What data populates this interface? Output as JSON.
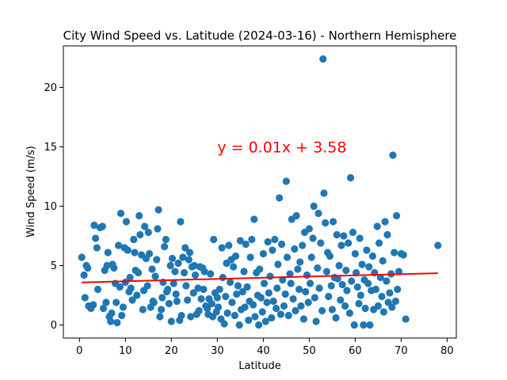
{
  "chart_data": {
    "type": "scatter",
    "title": "City Wind Speed vs. Latitude (2024-03-16) - Northern Hemisphere",
    "xlabel": "Latitude",
    "ylabel": "Wind Speed (m/s)",
    "xlim": [
      -3.5,
      82
    ],
    "ylim": [
      -1.1,
      23.5
    ],
    "xticks": [
      0,
      10,
      20,
      30,
      40,
      50,
      60,
      70,
      80
    ],
    "yticks": [
      0,
      5,
      10,
      15,
      20
    ],
    "grid": false,
    "marker_color": "#1f77b4",
    "regression": {
      "equation": "y = 0.01x + 3.58",
      "slope": 0.01,
      "intercept": 3.58,
      "x_range": [
        0.5,
        78
      ],
      "color": "#ff0000",
      "label_x": 30,
      "label_y": 15
    },
    "points": [
      [
        0.5,
        5.7
      ],
      [
        1,
        4.2
      ],
      [
        1.2,
        2.3
      ],
      [
        1.5,
        5.0
      ],
      [
        1.8,
        4.8
      ],
      [
        2,
        1.6
      ],
      [
        2.5,
        1.4
      ],
      [
        3,
        1.7
      ],
      [
        3.2,
        8.4
      ],
      [
        3.5,
        7.3
      ],
      [
        3.8,
        6.5
      ],
      [
        4,
        3.0
      ],
      [
        4.5,
        8.2
      ],
      [
        5,
        8.3
      ],
      [
        5.2,
        1.4
      ],
      [
        5.5,
        4.6
      ],
      [
        5.8,
        1.9
      ],
      [
        6,
        5.0
      ],
      [
        6.2,
        6.1
      ],
      [
        6.5,
        0.7
      ],
      [
        6.8,
        0.3
      ],
      [
        7,
        1.0
      ],
      [
        7.2,
        5.1
      ],
      [
        7.5,
        4.8
      ],
      [
        7.8,
        3.5
      ],
      [
        8,
        1.9
      ],
      [
        8.2,
        0.2
      ],
      [
        8.5,
        6.7
      ],
      [
        8.8,
        3.2
      ],
      [
        9,
        9.4
      ],
      [
        9.2,
        0.8
      ],
      [
        9.5,
        1.5
      ],
      [
        9.8,
        6.5
      ],
      [
        10,
        3.6
      ],
      [
        10.2,
        8.7
      ],
      [
        10.5,
        6.3
      ],
      [
        10.8,
        2.8
      ],
      [
        11,
        4.0
      ],
      [
        11.2,
        3.1
      ],
      [
        11.5,
        2.1
      ],
      [
        11.8,
        7.2
      ],
      [
        12,
        6.1
      ],
      [
        12.2,
        4.6
      ],
      [
        12.5,
        2.5
      ],
      [
        12.8,
        4.4
      ],
      [
        13,
        9.2
      ],
      [
        13.2,
        7.6
      ],
      [
        13.5,
        5.9
      ],
      [
        13.8,
        1.3
      ],
      [
        14,
        2.9
      ],
      [
        14.2,
        8.3
      ],
      [
        14.5,
        5.6
      ],
      [
        14.8,
        3.3
      ],
      [
        15,
        7.8
      ],
      [
        15.2,
        6.0
      ],
      [
        15.5,
        1.5
      ],
      [
        15.8,
        4.7
      ],
      [
        16,
        2.0
      ],
      [
        16.2,
        1.9
      ],
      [
        16.5,
        4.1
      ],
      [
        16.8,
        5.5
      ],
      [
        17,
        8.1
      ],
      [
        17.2,
        9.7
      ],
      [
        17.5,
        0.7
      ],
      [
        17.8,
        1.3
      ],
      [
        18,
        2.3
      ],
      [
        18.2,
        3.6
      ],
      [
        18.5,
        6.6
      ],
      [
        18.8,
        7.2
      ],
      [
        19,
        2.8
      ],
      [
        19.2,
        3.0
      ],
      [
        19.5,
        1.8
      ],
      [
        19.8,
        5.0
      ],
      [
        20,
        0.3
      ],
      [
        20.2,
        5.6
      ],
      [
        20.5,
        3.5
      ],
      [
        20.8,
        4.5
      ],
      [
        21,
        2.6
      ],
      [
        21.2,
        2.0
      ],
      [
        21.5,
        5.2
      ],
      [
        21.8,
        0.4
      ],
      [
        22,
        8.7
      ],
      [
        22.2,
        0.8
      ],
      [
        22.5,
        5.7
      ],
      [
        22.8,
        4.4
      ],
      [
        23,
        6.5
      ],
      [
        23.2,
        3.3
      ],
      [
        23.5,
        2.1
      ],
      [
        23.8,
        5.5
      ],
      [
        24,
        6.1
      ],
      [
        24.2,
        0.7
      ],
      [
        24.5,
        4.9
      ],
      [
        24.8,
        2.7
      ],
      [
        25,
        5.0
      ],
      [
        25.2,
        4.2
      ],
      [
        25.5,
        0.9
      ],
      [
        25.8,
        3.1
      ],
      [
        26,
        1.2
      ],
      [
        26.2,
        4.9
      ],
      [
        26.5,
        2.2
      ],
      [
        26.8,
        4.8
      ],
      [
        27,
        3.0
      ],
      [
        27.2,
        4.5
      ],
      [
        27.5,
        1.6
      ],
      [
        27.8,
        1.4
      ],
      [
        28,
        0.9
      ],
      [
        28.2,
        2.2
      ],
      [
        28.5,
        4.3
      ],
      [
        28.8,
        1.8
      ],
      [
        29,
        0.7
      ],
      [
        29.2,
        7.2
      ],
      [
        29.5,
        2.7
      ],
      [
        29.8,
        1.1
      ],
      [
        30,
        2.3
      ],
      [
        30.2,
        1.5
      ],
      [
        30.5,
        3.0
      ],
      [
        30.8,
        0.5
      ],
      [
        31,
        6.5
      ],
      [
        31.2,
        4.0
      ],
      [
        31.5,
        0.1
      ],
      [
        31.8,
        2.4
      ],
      [
        32,
        5.2
      ],
      [
        32.2,
        1.0
      ],
      [
        32.5,
        6.7
      ],
      [
        32.8,
        3.6
      ],
      [
        33,
        5.5
      ],
      [
        33.2,
        1.9
      ],
      [
        33.5,
        4.9
      ],
      [
        33.8,
        0.8
      ],
      [
        34,
        5.8
      ],
      [
        34.2,
        2.6
      ],
      [
        34.5,
        3.3
      ],
      [
        34.8,
        0.0
      ],
      [
        35,
        7.1
      ],
      [
        35.2,
        1.3
      ],
      [
        35.5,
        2.8
      ],
      [
        35.8,
        4.5
      ],
      [
        36,
        1.5
      ],
      [
        36.2,
        6.8
      ],
      [
        36.5,
        3.2
      ],
      [
        36.8,
        0.4
      ],
      [
        37,
        2.0
      ],
      [
        37.2,
        5.7
      ],
      [
        37.5,
        7.2
      ],
      [
        37.8,
        1.7
      ],
      [
        38,
        8.9
      ],
      [
        38.2,
        0.7
      ],
      [
        38.5,
        4.4
      ],
      [
        38.8,
        2.5
      ],
      [
        39,
        0.0
      ],
      [
        39.2,
        4.7
      ],
      [
        39.5,
        2.3
      ],
      [
        39.8,
        1.1
      ],
      [
        40,
        6.0
      ],
      [
        40.2,
        3.5
      ],
      [
        40.5,
        0.3
      ],
      [
        40.8,
        1.9
      ],
      [
        41,
        7.0
      ],
      [
        41.2,
        2.7
      ],
      [
        41.5,
        4.1
      ],
      [
        41.8,
        0.6
      ],
      [
        42,
        6.3
      ],
      [
        42.2,
        2.0
      ],
      [
        42.5,
        7.2
      ],
      [
        42.8,
        1.4
      ],
      [
        43,
        3.1
      ],
      [
        43.2,
        5.1
      ],
      [
        43.5,
        10.7
      ],
      [
        43.8,
        0.9
      ],
      [
        44,
        6.8
      ],
      [
        44.2,
        3.8
      ],
      [
        44.5,
        1.6
      ],
      [
        44.8,
        2.6
      ],
      [
        45,
        12.1
      ],
      [
        45.2,
        5.7
      ],
      [
        45.5,
        0.8
      ],
      [
        45.8,
        4.3
      ],
      [
        46,
        3.5
      ],
      [
        46.2,
        8.9
      ],
      [
        46.5,
        2.2
      ],
      [
        46.8,
        6.4
      ],
      [
        47,
        1.2
      ],
      [
        47.2,
        9.2
      ],
      [
        47.5,
        4.7
      ],
      [
        47.8,
        3.0
      ],
      [
        48,
        5.3
      ],
      [
        48.2,
        1.6
      ],
      [
        48.5,
        6.7
      ],
      [
        48.8,
        0.5
      ],
      [
        49,
        7.8
      ],
      [
        49.2,
        2.8
      ],
      [
        49.5,
        4.2
      ],
      [
        49.8,
        1.9
      ],
      [
        50,
        8.1
      ],
      [
        50.2,
        3.5
      ],
      [
        50.5,
        5.7
      ],
      [
        50.8,
        7.3
      ],
      [
        51,
        10.0
      ],
      [
        51.2,
        2.3
      ],
      [
        51.5,
        0.3
      ],
      [
        51.8,
        4.8
      ],
      [
        52,
        9.4
      ],
      [
        52.2,
        3.1
      ],
      [
        52.5,
        6.9
      ],
      [
        52.8,
        1.2
      ],
      [
        53,
        22.4
      ],
      [
        53.2,
        11.1
      ],
      [
        53.5,
        8.6
      ],
      [
        53.8,
        4.5
      ],
      [
        54,
        6.1
      ],
      [
        54.2,
        2.4
      ],
      [
        54.5,
        5.8
      ],
      [
        54.8,
        3.3
      ],
      [
        55,
        1.3
      ],
      [
        55.2,
        8.7
      ],
      [
        55.5,
        4.0
      ],
      [
        55.8,
        0.6
      ],
      [
        56,
        7.6
      ],
      [
        56.2,
        3.9
      ],
      [
        56.5,
        5.0
      ],
      [
        56.8,
        2.1
      ],
      [
        57,
        6.7
      ],
      [
        57.2,
        3.4
      ],
      [
        57.5,
        7.5
      ],
      [
        57.8,
        1.6
      ],
      [
        58,
        4.6
      ],
      [
        58.2,
        2.9
      ],
      [
        58.5,
        6.9
      ],
      [
        58.8,
        1.0
      ],
      [
        59,
        12.4
      ],
      [
        59.2,
        3.7
      ],
      [
        59.5,
        7.8
      ],
      [
        59.8,
        0.0
      ],
      [
        60,
        6.0
      ],
      [
        60.2,
        4.4
      ],
      [
        60.5,
        3.2
      ],
      [
        60.8,
        1.8
      ],
      [
        61,
        7.3
      ],
      [
        61.2,
        2.5
      ],
      [
        61.5,
        5.1
      ],
      [
        61.8,
        0.0
      ],
      [
        62,
        3.8
      ],
      [
        62.2,
        1.4
      ],
      [
        62.5,
        6.3
      ],
      [
        62.8,
        3.5
      ],
      [
        63,
        4.9
      ],
      [
        63.2,
        0.0
      ],
      [
        63.5,
        2.9
      ],
      [
        63.8,
        5.8
      ],
      [
        64,
        1.3
      ],
      [
        64.2,
        4.4
      ],
      [
        64.5,
        3.0
      ],
      [
        64.8,
        8.3
      ],
      [
        65,
        1.6
      ],
      [
        65.2,
        6.9
      ],
      [
        65.5,
        4.0
      ],
      [
        65.8,
        2.4
      ],
      [
        66,
        5.4
      ],
      [
        66.2,
        1.1
      ],
      [
        66.5,
        8.7
      ],
      [
        66.8,
        3.7
      ],
      [
        67,
        7.6
      ],
      [
        67.2,
        1.9
      ],
      [
        67.5,
        2.7
      ],
      [
        67.8,
        4.3
      ],
      [
        68,
        1.5
      ],
      [
        68.2,
        14.3
      ],
      [
        68.5,
        6.1
      ],
      [
        68.8,
        2.0
      ],
      [
        69,
        9.2
      ],
      [
        69.2,
        3.0
      ],
      [
        69.5,
        4.5
      ],
      [
        70,
        6.0
      ],
      [
        70.5,
        5.9
      ],
      [
        71,
        0.5
      ],
      [
        78,
        6.7
      ]
    ]
  }
}
